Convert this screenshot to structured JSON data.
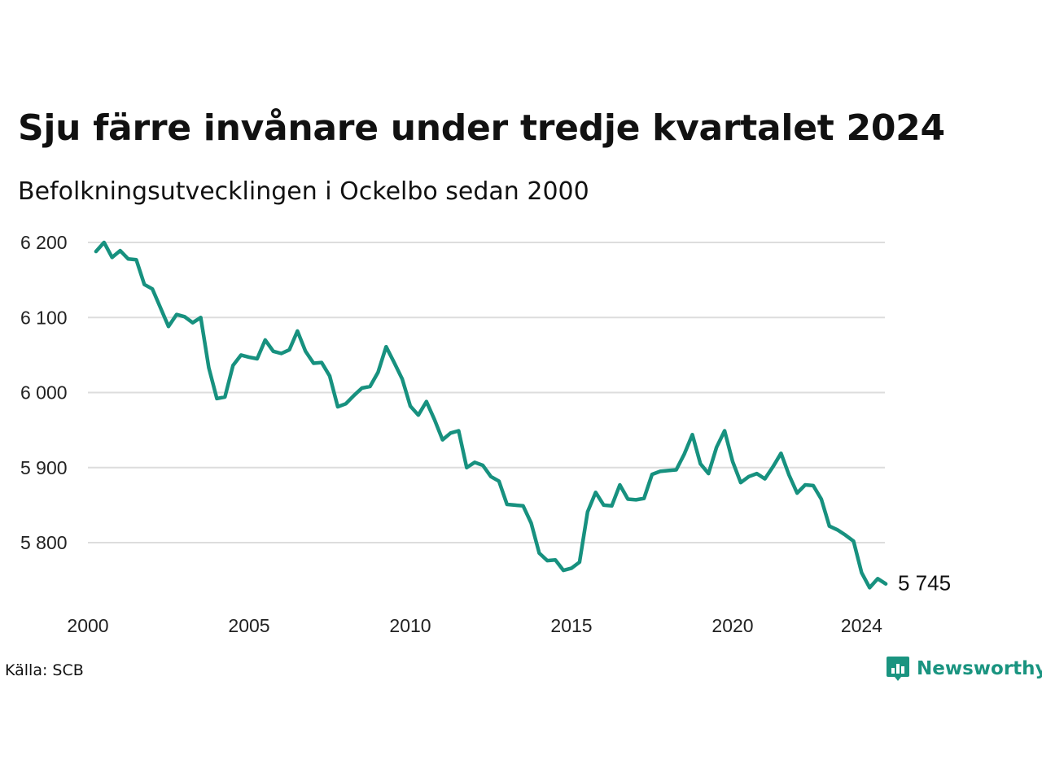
{
  "header": {
    "title": "Sju färre invånare under tredje kvartalet 2024",
    "subtitle": "Befolkningsutvecklingen i Ockelbo sedan 2000"
  },
  "footer": {
    "source": "Källa: SCB",
    "brand": "Newsworthy",
    "brand_icon": "newsworthy-logo-icon"
  },
  "colors": {
    "line": "#17917f",
    "grid": "#dddddd",
    "brand": "#1a9480"
  },
  "chart_data": {
    "type": "line",
    "title": "Sju färre invånare under tredje kvartalet 2024",
    "subtitle": "Befolkningsutvecklingen i Ockelbo sedan 2000",
    "xlabel": "",
    "ylabel": "",
    "ylim": [
      5740,
      6200
    ],
    "xlim": [
      2000,
      2024.75
    ],
    "grid": true,
    "y_ticks": [
      5800,
      5900,
      6000,
      6100,
      6200
    ],
    "y_tick_labels": [
      "5 800",
      "5 900",
      "6 000",
      "6 100",
      "6 200"
    ],
    "x_ticks": [
      2000,
      2005,
      2010,
      2015,
      2020,
      2024
    ],
    "x_tick_labels": [
      "2000",
      "2005",
      "2010",
      "2015",
      "2020",
      "2024"
    ],
    "end_label": "5 745",
    "x": [
      2000.25,
      2000.5,
      2000.75,
      2001,
      2001.25,
      2001.5,
      2001.75,
      2002,
      2002.25,
      2002.5,
      2002.75,
      2003,
      2003.25,
      2003.5,
      2003.75,
      2004,
      2004.25,
      2004.5,
      2004.75,
      2005,
      2005.25,
      2005.5,
      2005.75,
      2006,
      2006.25,
      2006.5,
      2006.75,
      2007,
      2007.25,
      2007.5,
      2007.75,
      2008,
      2008.25,
      2008.5,
      2008.75,
      2009,
      2009.25,
      2009.5,
      2009.75,
      2010,
      2010.25,
      2010.5,
      2010.75,
      2011,
      2011.25,
      2011.5,
      2011.75,
      2012,
      2012.25,
      2012.5,
      2012.75,
      2013,
      2013.25,
      2013.5,
      2013.75,
      2014,
      2014.25,
      2014.5,
      2014.75,
      2015,
      2015.25,
      2015.5,
      2015.75,
      2016,
      2016.25,
      2016.5,
      2016.75,
      2017,
      2017.25,
      2017.5,
      2017.75,
      2018,
      2018.25,
      2018.5,
      2018.75,
      2019,
      2019.25,
      2019.5,
      2019.75,
      2020,
      2020.25,
      2020.5,
      2020.75,
      2021,
      2021.25,
      2021.5,
      2021.75,
      2022,
      2022.25,
      2022.5,
      2022.75,
      2023,
      2023.25,
      2023.5,
      2023.75,
      2024,
      2024.25,
      2024.5,
      2024.75
    ],
    "series": [
      {
        "values": [
          6188,
          6200,
          6180,
          6189,
          6178,
          6177,
          6144,
          6138,
          6113,
          6088,
          6104,
          6101,
          6093,
          6100,
          6033,
          5992,
          5994,
          6036,
          6050,
          6047,
          6045,
          6070,
          6055,
          6052,
          6057,
          6082,
          6055,
          6039,
          6040,
          6022,
          5981,
          5985,
          5996,
          6006,
          6008,
          6027,
          6061,
          6040,
          6018,
          5982,
          5970,
          5988,
          5964,
          5937,
          5946,
          5949,
          5900,
          5907,
          5903,
          5888,
          5882,
          5851,
          5850,
          5849,
          5826,
          5786,
          5776,
          5777,
          5763,
          5766,
          5774,
          5841,
          5867,
          5850,
          5849,
          5877,
          5858,
          5857,
          5859,
          5891,
          5895,
          5896,
          5897,
          5918,
          5944,
          5905,
          5892,
          5927,
          5949,
          5908,
          5880,
          5888,
          5892,
          5885,
          5901,
          5919,
          5890,
          5866,
          5877,
          5876,
          5858,
          5822,
          5817,
          5810,
          5802,
          5760,
          5740,
          5752,
          5745
        ]
      }
    ]
  }
}
